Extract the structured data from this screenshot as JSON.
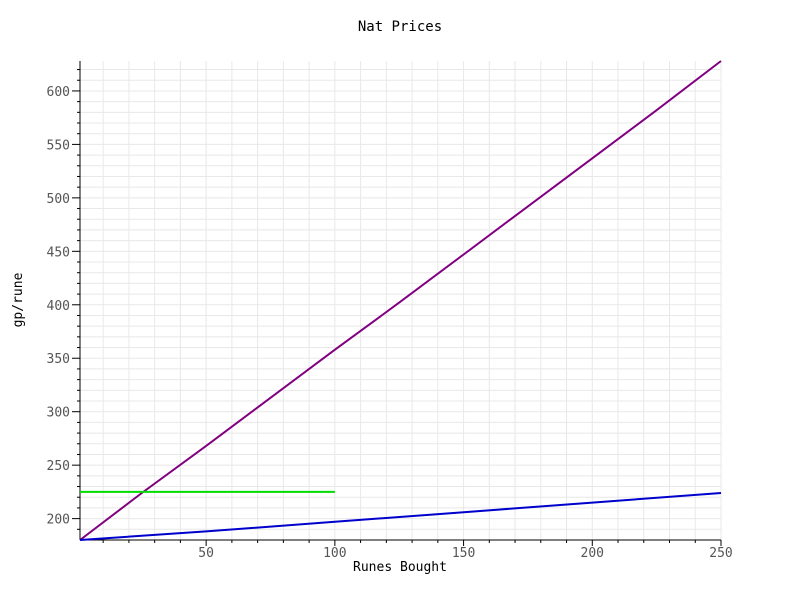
{
  "chart_data": {
    "type": "line",
    "title": "Nat Prices",
    "xlabel": "Runes Bought",
    "ylabel": "gp/rune",
    "xlim": [
      1,
      250
    ],
    "ylim": [
      180,
      628
    ],
    "x_ticks": [
      50,
      100,
      150,
      200,
      250
    ],
    "y_ticks": [
      200,
      250,
      300,
      350,
      400,
      450,
      500,
      550,
      600
    ],
    "x_tick_labels": [
      "50",
      "100",
      "150",
      "200",
      "250"
    ],
    "y_tick_labels": [
      "200",
      "250",
      "300",
      "350",
      "400",
      "450",
      "500",
      "550",
      "600"
    ],
    "grid": true,
    "series": [
      {
        "color": "#800080",
        "x": [
          1,
          25,
          50,
          75,
          100,
          125,
          150,
          175,
          200,
          225,
          250
        ],
        "y": [
          180,
          224,
          268,
          313,
          358,
          402,
          447,
          492,
          537,
          582,
          628
        ]
      },
      {
        "color": "#0000cc",
        "x": [
          1,
          50,
          100,
          150,
          200,
          250
        ],
        "y": [
          180,
          188,
          197,
          206,
          215,
          224
        ]
      },
      {
        "color": "#00dd00",
        "x": [
          1,
          100
        ],
        "y": [
          225,
          225
        ]
      }
    ]
  }
}
